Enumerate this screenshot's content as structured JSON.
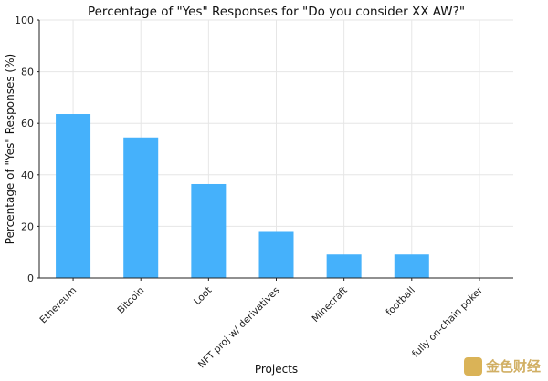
{
  "chart_data": {
    "type": "bar",
    "title": "Percentage of \"Yes\" Responses for \"Do you consider XX AW?\"",
    "xlabel": "Projects",
    "ylabel": "Percentage of \"Yes\" Responses (%)",
    "categories": [
      "Ethereum",
      "Bitcoin",
      "Loot",
      "NFT proj w/ derivatives",
      "Minecraft",
      "football",
      "fully on-chain poker"
    ],
    "values": [
      63.6,
      54.5,
      36.4,
      18.2,
      9.1,
      9.1,
      0
    ],
    "ylim": [
      0,
      100
    ],
    "yticks": [
      0,
      20,
      40,
      60,
      80,
      100
    ],
    "grid": true,
    "bar_color": "#45b1fb"
  },
  "watermark": "金色财经"
}
